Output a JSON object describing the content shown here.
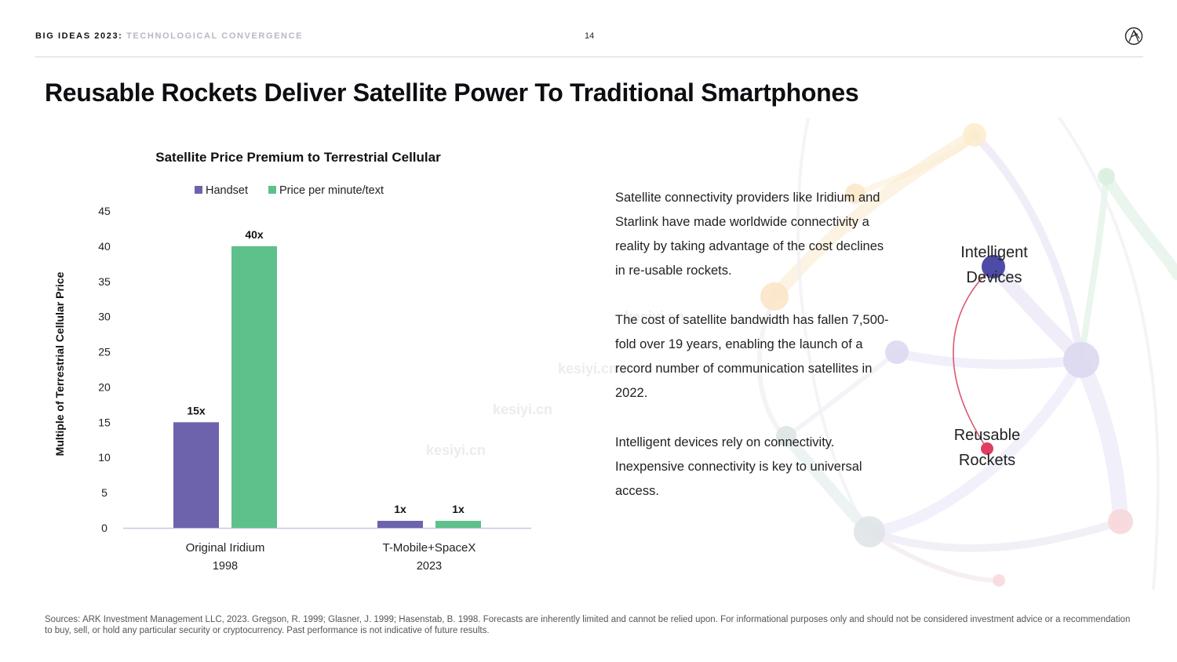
{
  "header": {
    "brand": "BIG IDEAS 2023",
    "separator": ":",
    "subtitle": "TECHNOLOGICAL CONVERGENCE",
    "page_number": "14",
    "logo_icon": "ark-logo-icon"
  },
  "title": "Reusable Rockets Deliver Satellite Power To Traditional Smartphones",
  "chart_data": {
    "type": "bar",
    "title": "Satellite Price Premium to Terrestrial Cellular",
    "ylabel": "Multiple of Terrestrial Cellular Price",
    "xlabel": "",
    "ylim": [
      0,
      45
    ],
    "yticks": [
      0,
      5,
      10,
      15,
      20,
      25,
      30,
      35,
      40,
      45
    ],
    "categories": [
      {
        "name": "Original Iridium",
        "year": "1998"
      },
      {
        "name": "T-Mobile+SpaceX",
        "year": "2023"
      }
    ],
    "series": [
      {
        "name": "Handset",
        "color": "#6c63ac",
        "values": [
          15,
          1
        ],
        "labels": [
          "15x",
          "1x"
        ]
      },
      {
        "name": "Price per minute/text",
        "color": "#5ec08a",
        "values": [
          40,
          1
        ],
        "labels": [
          "40x",
          "1x"
        ]
      }
    ],
    "legend": "top",
    "grid": false
  },
  "body": {
    "paragraphs": [
      "Satellite connectivity providers like Iridium and Starlink have made worldwide connectivity a reality by taking advantage of the cost declines in re-usable rockets.",
      "The cost of satellite bandwidth has fallen 7,500-fold over 19 years, enabling the launch of a record number of communication satellites in 2022.",
      "Intelligent devices rely on connectivity. Inexpensive connectivity is key to universal access."
    ]
  },
  "network": {
    "node_intelligent": "Intelligent Devices",
    "node_rockets": "Reusable Rockets"
  },
  "watermark": "kesiyi.cn",
  "footnote": "Sources: ARK Investment Management LLC, 2023. Gregson, R. 1999; Glasner, J. 1999; Hasenstab, B. 1998. Forecasts are inherently limited and cannot be relied upon. For informational purposes only and should not be considered investment advice or a recommendation to buy, sell, or hold any particular security or cryptocurrency. Past performance is not indicative of future results."
}
